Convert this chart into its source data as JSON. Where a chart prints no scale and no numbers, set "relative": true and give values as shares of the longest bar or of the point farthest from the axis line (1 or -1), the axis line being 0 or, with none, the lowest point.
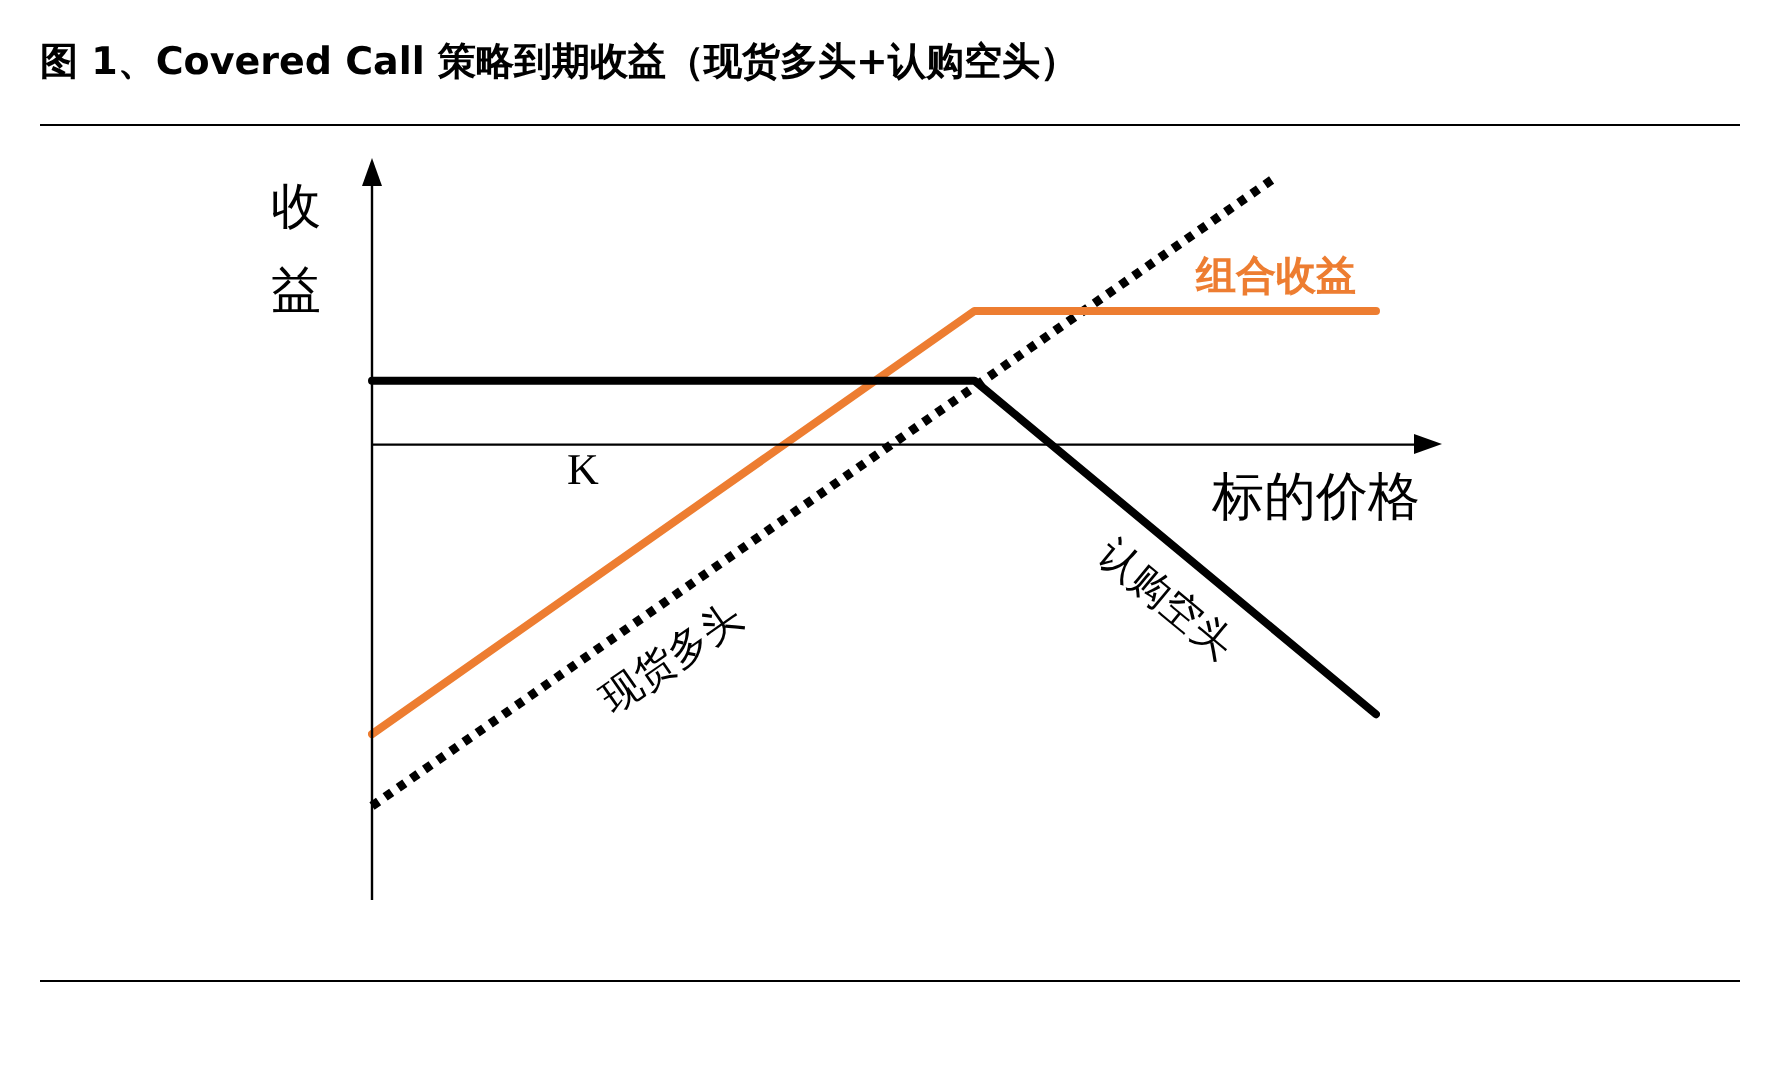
{
  "chart_data": {
    "type": "line",
    "title": "图 1、Covered Call 策略到期收益（现货多头+认购空头）",
    "xlabel": "标的价格",
    "ylabel": "收益",
    "annotations": [
      "K"
    ],
    "categories": [
      null,
      null,
      null,
      null,
      null,
      null,
      null,
      null,
      null,
      null,
      null
    ],
    "relative": true,
    "legend": false,
    "marker": "none",
    "line_style": "solid",
    "series": [
      {
        "name": "认购空头",
        "color": "#000000",
        "values": [
          0.177,
          null,
          null,
          null,
          null,
          null,
          0.177,
          null,
          null,
          null,
          -0.746
        ]
      },
      {
        "name": "组合收益",
        "color": "#ed7d31",
        "values": [
          -0.801,
          null,
          null,
          null,
          null,
          null,
          0.37,
          null,
          null,
          null,
          0.37
        ]
      },
      {
        "name": "现货多头",
        "color": "#000000",
        "line_style": "dotted",
        "values": [
          -1,
          null,
          null,
          null,
          null,
          null,
          null,
          null,
          null,
          0.74,
          null
        ]
      }
    ]
  }
}
